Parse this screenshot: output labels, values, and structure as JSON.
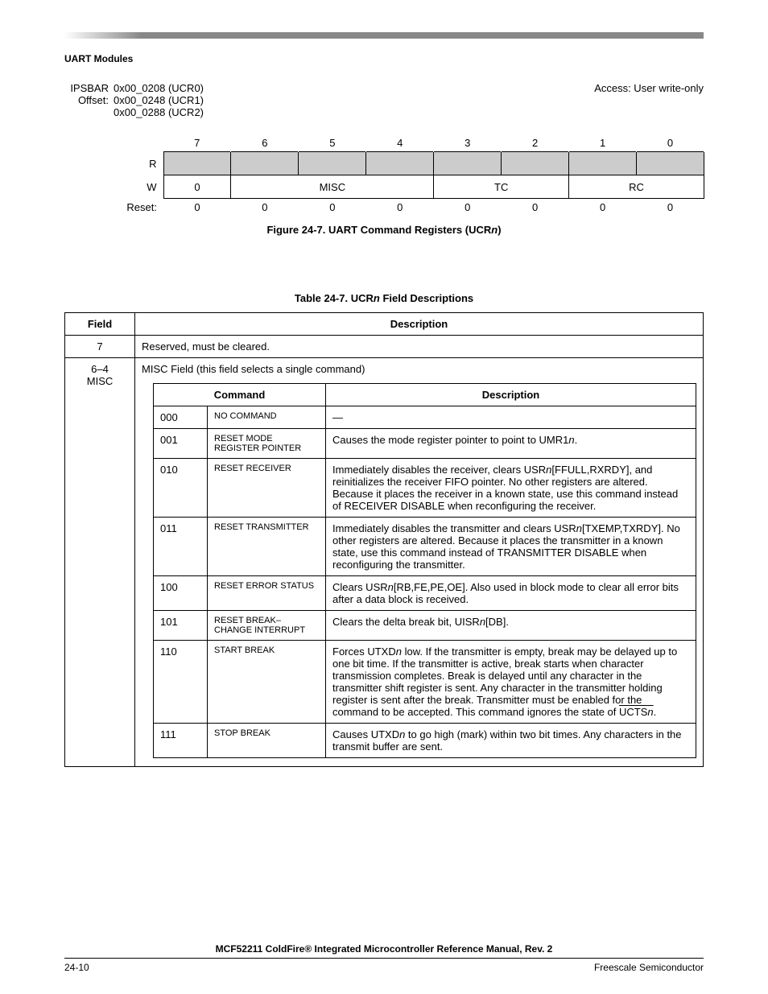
{
  "header": {
    "section": "UART Modules"
  },
  "regblock": {
    "ipsbar_label": "IPSBAR",
    "offset_label": "Offset:",
    "access": "Access: User write-only",
    "addrs": [
      "0x00_0208 (UCR0)",
      "0x00_0248 (UCR1)",
      "0x00_0288 (UCR2)"
    ],
    "bitnums": [
      "7",
      "6",
      "5",
      "4",
      "3",
      "2",
      "1",
      "0"
    ],
    "row_r_label": "R",
    "row_w_label": "W",
    "w_cells": {
      "bit7": "0",
      "misc": "MISC",
      "tc": "TC",
      "rc": "RC"
    },
    "reset_label": "Reset:",
    "reset_vals": [
      "0",
      "0",
      "0",
      "0",
      "0",
      "0",
      "0",
      "0"
    ]
  },
  "fig_caption": {
    "pre": "Figure 24-7. UART Command Registers (UCR",
    "ital": "n",
    "post": ")"
  },
  "tbl_caption": {
    "pre": "Table 24-7. UCR",
    "ital": "n",
    "post": " Field Descriptions"
  },
  "table": {
    "head_field": "Field",
    "head_desc": "Description",
    "row7_field": "7",
    "row7_desc": "Reserved, must be cleared.",
    "row64_field_a": "6–4",
    "row64_field_b": "MISC",
    "row64_intro": "MISC Field (this field selects a single command)",
    "inner_head_cmd": "Command",
    "inner_head_desc": "Description",
    "cmds": [
      {
        "code": "000",
        "cmd": "NO COMMAND",
        "desc": "—"
      },
      {
        "code": "001",
        "cmd": "RESET MODE REGISTER POINTER",
        "desc_pre": "Causes the mode register pointer to point to UMR1",
        "desc_ital": "n",
        "desc_post": "."
      },
      {
        "code": "010",
        "cmd": "RESET RECEIVER",
        "desc_pre": "Immediately disables the receiver, clears USR",
        "desc_ital": "n",
        "desc_mid": "[FFULL,RXRDY], and reinitializes the receiver FIFO pointer. No other registers are altered. Because it places the receiver in a known state, use this command instead of ",
        "desc_sc": "RECEIVER DISABLE",
        "desc_post": " when reconfiguring the receiver."
      },
      {
        "code": "011",
        "cmd": "RESET TRANSMITTER",
        "desc_pre": "Immediately disables the transmitter and clears USR",
        "desc_ital": "n",
        "desc_mid": "[TXEMP,TXRDY]. No other registers are altered. Because it places the transmitter in a known state, use this command instead of ",
        "desc_sc": "TRANSMITTER DISABLE",
        "desc_post": " when reconfiguring the transmitter."
      },
      {
        "code": "100",
        "cmd": "RESET ERROR STATUS",
        "desc_pre": "Clears USR",
        "desc_ital": "n",
        "desc_post": "[RB,FE,PE,OE]. Also used in block mode to clear all error bits after a data block is received."
      },
      {
        "code": "101",
        "cmd": "RESET BREAK– CHANGE INTERRUPT",
        "desc_pre": "Clears the delta break bit, UISR",
        "desc_ital": "n",
        "desc_post": "[DB]."
      },
      {
        "code": "110",
        "cmd": "START BREAK",
        "desc_pre": "Forces UTXD",
        "desc_ital": "n",
        "desc_mid": " low. If the transmitter is empty, break may be delayed up to one bit time. If the transmitter is active, break starts when character transmission completes. Break is delayed until any character in the transmitter shift register is sent. Any character in the transmitter holding register is sent after the break. Transmitter must be enabled for the command to be accepted. This command ignores the state of ",
        "desc_ov_pre": "UCTS",
        "desc_ov_ital": "n",
        "desc_post": "."
      },
      {
        "code": "111",
        "cmd": "STOP BREAK",
        "desc_pre": "Causes UTXD",
        "desc_ital": "n",
        "desc_post": " to go high (mark) within two bit times. Any characters in the transmit buffer are sent."
      }
    ]
  },
  "footer": {
    "title": "MCF52211 ColdFire® Integrated Microcontroller Reference Manual, Rev. 2",
    "page": "24-10",
    "company": "Freescale Semiconductor"
  }
}
